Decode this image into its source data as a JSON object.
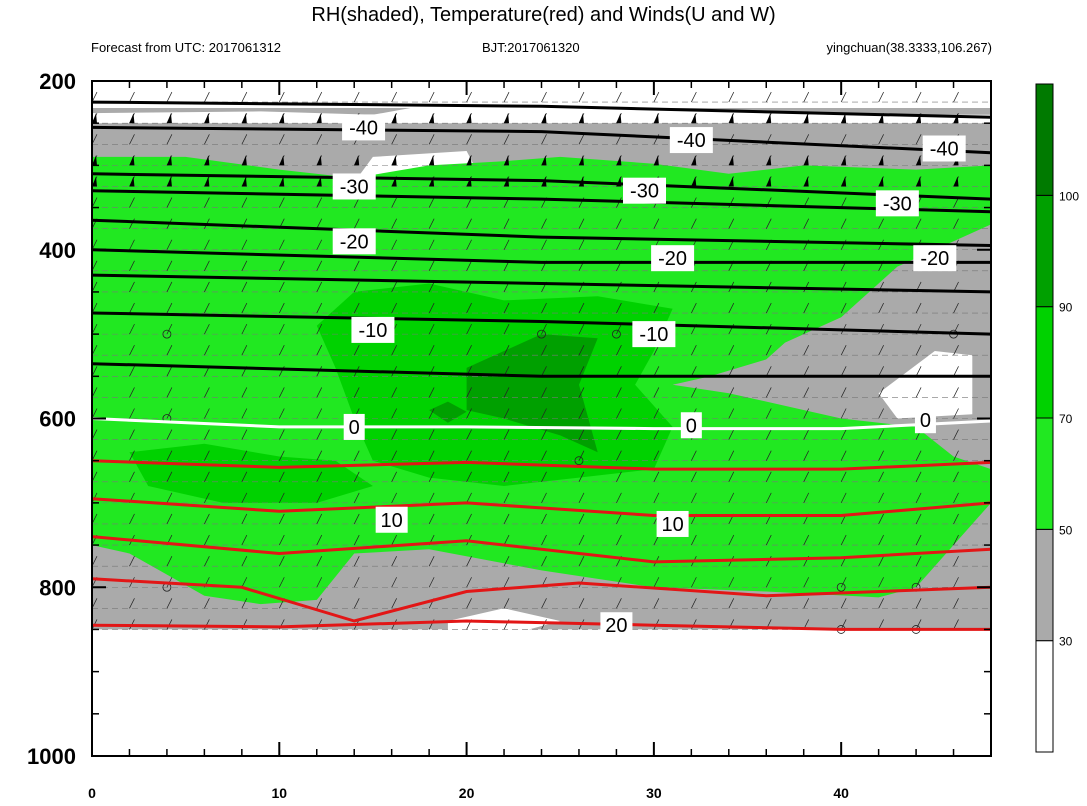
{
  "title": "RH(shaded), Temperature(red) and Winds(U and W)",
  "subtitle_left": "Forecast from UTC: 2017061312",
  "subtitle_center": "BJT:2017061320",
  "subtitle_right": "yingchuan(38.3333,106.267)",
  "chart_data": {
    "type": "contour",
    "x_axis": {
      "range": [
        0,
        48
      ],
      "ticks": [
        0,
        10,
        20,
        30,
        40
      ],
      "minor_step": 2
    },
    "y_axis": {
      "range": [
        200,
        1000
      ],
      "inverted": true,
      "ticks": [
        200,
        400,
        600,
        800,
        1000
      ],
      "minor_step": 50
    },
    "colorbar": {
      "levels": [
        30,
        50,
        70,
        90,
        100
      ],
      "labels": [
        "30",
        "50",
        "70",
        "90",
        "100"
      ],
      "colors": [
        "#ffffff",
        "#aaaaaa",
        "#21e821",
        "#00d200",
        "#00a000",
        "#007a00"
      ]
    },
    "pressure_levels": [
      225,
      250,
      275,
      300,
      325,
      350,
      375,
      400,
      425,
      450,
      475,
      500,
      525,
      550,
      575,
      600,
      625,
      650,
      675,
      700,
      725,
      750,
      775,
      800,
      825,
      850
    ],
    "rh_regions": [
      {
        "level": "white",
        "y_range": [
          225,
          300
        ],
        "x_range": [
          0,
          48
        ]
      },
      {
        "level": "gray",
        "y_range": [
          225,
          850
        ],
        "x_range": [
          0,
          48
        ]
      },
      {
        "level": "light-green",
        "y_range": [
          300,
          850
        ],
        "x_range": [
          0,
          48
        ]
      },
      {
        "level": "green",
        "y_range": [
          450,
          650
        ],
        "x_range": [
          14,
          30
        ]
      },
      {
        "level": "dark-green",
        "y_range": [
          490,
          590
        ],
        "x_range": [
          20,
          27
        ]
      }
    ],
    "temperature_isotherms": [
      {
        "label": "20",
        "values": [
          [
            0,
            845
          ],
          [
            10,
            847
          ],
          [
            20,
            840
          ],
          [
            30,
            845
          ],
          [
            40,
            850
          ],
          [
            48,
            850
          ]
        ]
      },
      {
        "label": "10",
        "values": [
          [
            0,
            695
          ],
          [
            10,
            710
          ],
          [
            20,
            700
          ],
          [
            30,
            715
          ],
          [
            40,
            715
          ],
          [
            48,
            700
          ]
        ]
      },
      {
        "label": "",
        "values": [
          [
            0,
            650
          ],
          [
            10,
            658
          ],
          [
            20,
            652
          ],
          [
            30,
            660
          ],
          [
            40,
            660
          ],
          [
            48,
            652
          ]
        ]
      },
      {
        "label": "",
        "values": [
          [
            0,
            740
          ],
          [
            10,
            760
          ],
          [
            20,
            745
          ],
          [
            30,
            770
          ],
          [
            40,
            765
          ],
          [
            48,
            755
          ]
        ]
      },
      {
        "label": "",
        "values": [
          [
            0,
            790
          ],
          [
            8,
            800
          ],
          [
            14,
            840
          ],
          [
            20,
            805
          ],
          [
            26,
            795
          ],
          [
            36,
            810
          ],
          [
            48,
            800
          ]
        ]
      }
    ],
    "zero_isotherm": {
      "label": "0",
      "values": [
        [
          0,
          600
        ],
        [
          10,
          610
        ],
        [
          20,
          610
        ],
        [
          30,
          612
        ],
        [
          40,
          612
        ],
        [
          48,
          603
        ]
      ]
    },
    "black_isotherms": [
      {
        "label": "-40",
        "values": [
          [
            0,
            225
          ],
          [
            24,
            230
          ],
          [
            48,
            243
          ]
        ]
      },
      {
        "label": "-40",
        "values": [
          [
            0,
            255
          ],
          [
            24,
            260
          ],
          [
            48,
            285
          ]
        ]
      },
      {
        "label": "-30",
        "values": [
          [
            0,
            310
          ],
          [
            24,
            318
          ],
          [
            48,
            340
          ]
        ]
      },
      {
        "label": "-30",
        "values": [
          [
            0,
            330
          ],
          [
            24,
            340
          ],
          [
            48,
            355
          ]
        ]
      },
      {
        "label": "-20",
        "values": [
          [
            0,
            365
          ],
          [
            24,
            385
          ],
          [
            48,
            395
          ]
        ]
      },
      {
        "label": "-20",
        "values": [
          [
            0,
            400
          ],
          [
            24,
            415
          ],
          [
            48,
            415
          ]
        ]
      },
      {
        "label": "",
        "values": [
          [
            0,
            430
          ],
          [
            24,
            440
          ],
          [
            48,
            450
          ]
        ]
      },
      {
        "label": "-10",
        "values": [
          [
            0,
            475
          ],
          [
            24,
            485
          ],
          [
            48,
            500
          ]
        ]
      },
      {
        "label": "",
        "values": [
          [
            0,
            535
          ],
          [
            24,
            550
          ],
          [
            48,
            550
          ]
        ]
      }
    ],
    "contour_labels": [
      {
        "text": "-40",
        "x": 14.5,
        "y": 255
      },
      {
        "text": "-40",
        "x": 32,
        "y": 270
      },
      {
        "text": "-40",
        "x": 45.5,
        "y": 280
      },
      {
        "text": "-30",
        "x": 14,
        "y": 325
      },
      {
        "text": "-30",
        "x": 29.5,
        "y": 330
      },
      {
        "text": "-30",
        "x": 43,
        "y": 345
      },
      {
        "text": "-20",
        "x": 14,
        "y": 390
      },
      {
        "text": "-20",
        "x": 31,
        "y": 410
      },
      {
        "text": "-20",
        "x": 45,
        "y": 410
      },
      {
        "text": "-10",
        "x": 15,
        "y": 495
      },
      {
        "text": "-10",
        "x": 30,
        "y": 500
      },
      {
        "text": "0",
        "x": 14,
        "y": 610
      },
      {
        "text": "0",
        "x": 32,
        "y": 608
      },
      {
        "text": "0",
        "x": 44.5,
        "y": 602
      },
      {
        "text": "10",
        "x": 16,
        "y": 720
      },
      {
        "text": "10",
        "x": 31,
        "y": 725
      },
      {
        "text": "20",
        "x": 28,
        "y": 845
      }
    ],
    "wind_barbs": "short diagonal barbs on the 25 hPa grid rows with black flag pennants on the 250 hPa, 300 hPa and 325 hPa rows"
  }
}
